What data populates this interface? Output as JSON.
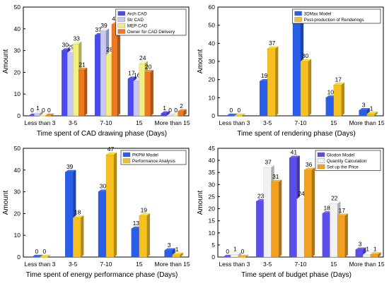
{
  "colors": {
    "arch": "#4a4af0",
    "str": "#c8c8f4",
    "mep": "#f4f080",
    "owner": "#f07820",
    "blue": "#2a5ee8",
    "yellow": "#f6c020",
    "glodon": "#5a50e8",
    "qty": "#f2f2f2",
    "price": "#f2a020"
  },
  "chart_data": [
    {
      "type": "bar",
      "ylabel": "Amount",
      "xlabel": "Time spent of CAD drawing phase (Days)",
      "categories": [
        "Less than 3",
        "3-5",
        "7-10",
        "15",
        "More than 15"
      ],
      "ylim": [
        0,
        50
      ],
      "yticks": [
        0,
        10,
        20,
        30,
        40,
        50
      ],
      "legend_position": "top-right",
      "series": [
        {
          "name": "Arch CAD",
          "color_key": "arch",
          "values": [
            0,
            30,
            37,
            17,
            1
          ]
        },
        {
          "name": "Str CAD",
          "color_key": "str",
          "values": [
            1,
            29,
            39,
            16,
            0
          ]
        },
        {
          "name": "MEP CAD",
          "color_key": "mep",
          "values": [
            0,
            33,
            28,
            24,
            0
          ]
        },
        {
          "name": "Owner for CAD Delivery",
          "color_key": "owner",
          "values": [
            0,
            21,
            42,
            20,
            2
          ]
        }
      ]
    },
    {
      "type": "bar",
      "ylabel": "Amount",
      "xlabel": "Time spent of rendering phase (Days)",
      "categories": [
        "Less than 3",
        "3-5",
        "7-10",
        "15",
        "More than 15"
      ],
      "ylim": [
        0,
        60
      ],
      "yticks": [
        0,
        10,
        20,
        30,
        40,
        50,
        60
      ],
      "legend_position": "top-right",
      "series": [
        {
          "name": "3DMax Model",
          "color_key": "blue",
          "values": [
            0,
            19,
            53,
            10,
            3
          ]
        },
        {
          "name": "Post-production of Renderings",
          "color_key": "yellow",
          "values": [
            0,
            37,
            30,
            17,
            1
          ]
        }
      ]
    },
    {
      "type": "bar",
      "ylabel": "Amount",
      "xlabel": "Time spent of energy performance phase (Days)",
      "categories": [
        "Less than 3",
        "3-5",
        "7-10",
        "15",
        "More than 15"
      ],
      "ylim": [
        0,
        50
      ],
      "yticks": [
        0,
        10,
        20,
        30,
        40,
        50
      ],
      "legend_position": "top-right",
      "series": [
        {
          "name": "PKPM Model",
          "color_key": "blue",
          "values": [
            0,
            39,
            30,
            13,
            3
          ]
        },
        {
          "name": "Performance Analysis",
          "color_key": "yellow",
          "values": [
            0,
            18,
            47,
            19,
            1
          ]
        }
      ]
    },
    {
      "type": "bar",
      "ylabel": "Amount",
      "xlabel": "Time spent of budget phase (Days)",
      "categories": [
        "Less than 3",
        "3-5",
        "7-10",
        "15",
        "More than 15"
      ],
      "ylim": [
        0,
        45
      ],
      "yticks": [
        0,
        5,
        10,
        15,
        20,
        25,
        30,
        35,
        40,
        45
      ],
      "legend_position": "top-right",
      "series": [
        {
          "name": "Glodon Model",
          "color_key": "glodon",
          "values": [
            0,
            23,
            41,
            18,
            3
          ]
        },
        {
          "name": "Quantity Calculation",
          "color_key": "qty",
          "values": [
            1,
            37,
            24,
            22,
            1
          ]
        },
        {
          "name": "Set up the Price",
          "color_key": "price",
          "values": [
            0,
            31,
            36,
            17,
            1
          ]
        }
      ]
    }
  ]
}
